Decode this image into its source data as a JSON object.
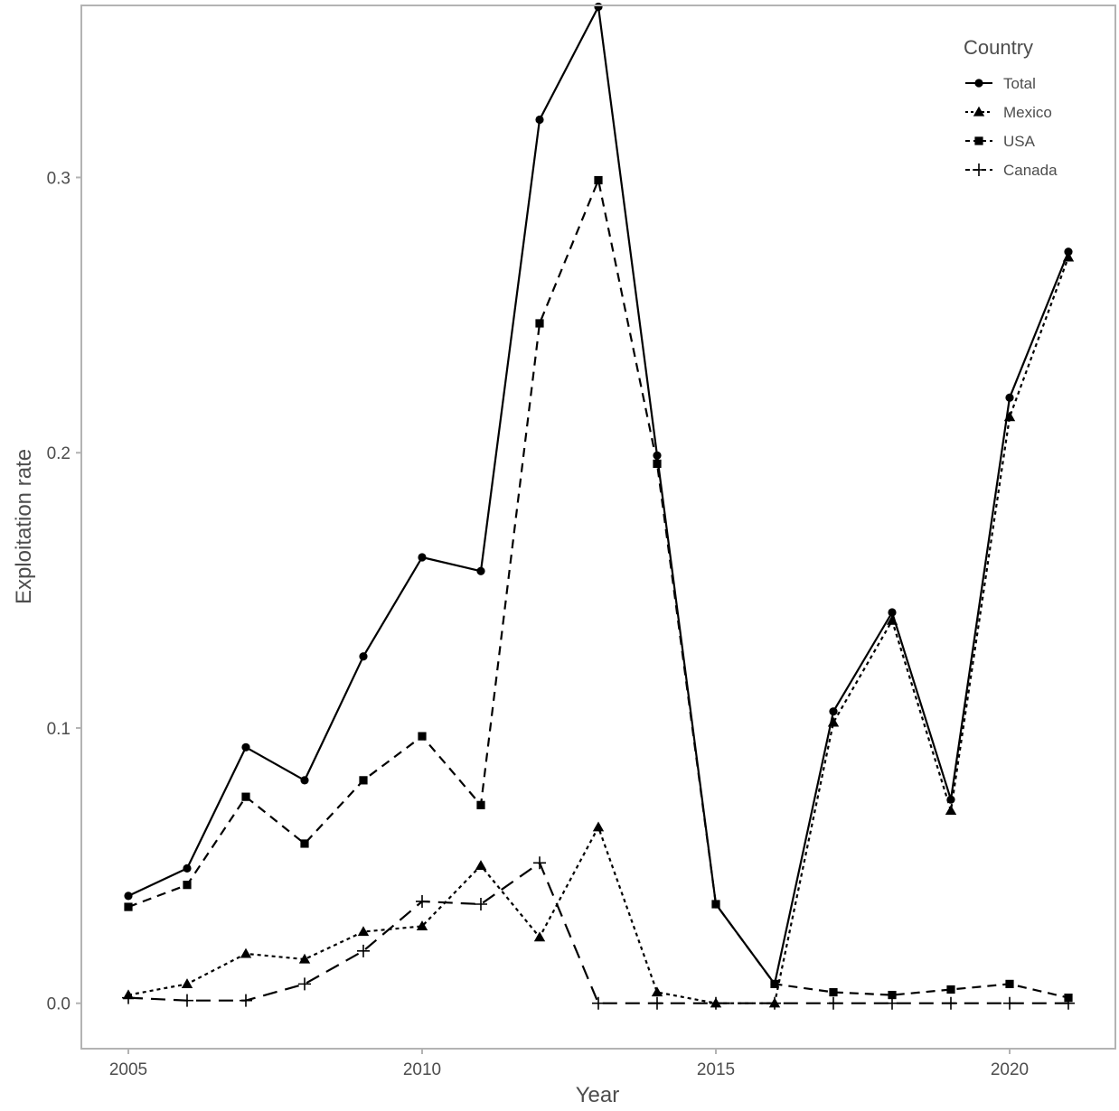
{
  "chart_data": {
    "type": "line",
    "title": "",
    "xlabel": "Year",
    "ylabel": "Exploitation rate",
    "xlim": [
      2004.2,
      2021.8
    ],
    "ylim": [
      -0.0165,
      0.3625
    ],
    "x_ticks": [
      2005,
      2010,
      2015,
      2020
    ],
    "y_ticks": [
      0.0,
      0.1,
      0.2,
      0.3
    ],
    "y_tick_labels": [
      "0.0",
      "0.1",
      "0.2",
      "0.3"
    ],
    "grid": false,
    "legend": {
      "title": "Country",
      "position": "top-right"
    },
    "x": [
      2005,
      2006,
      2007,
      2008,
      2009,
      2010,
      2011,
      2012,
      2013,
      2014,
      2015,
      2016,
      2017,
      2018,
      2019,
      2020,
      2021
    ],
    "series": [
      {
        "name": "Total",
        "line": "solid",
        "marker": "circle",
        "values": [
          0.039,
          0.049,
          0.093,
          0.081,
          0.126,
          0.162,
          0.157,
          0.321,
          0.362,
          0.199,
          0.036,
          0.007,
          0.106,
          0.142,
          0.074,
          0.22,
          0.273
        ]
      },
      {
        "name": "Mexico",
        "line": "dotted",
        "marker": "triangle",
        "values": [
          0.003,
          0.007,
          0.018,
          0.016,
          0.026,
          0.028,
          0.05,
          0.024,
          0.064,
          0.004,
          0.0,
          0.0,
          0.102,
          0.139,
          0.07,
          0.213,
          0.271
        ]
      },
      {
        "name": "USA",
        "line": "dashed",
        "marker": "square",
        "values": [
          0.035,
          0.043,
          0.075,
          0.058,
          0.081,
          0.097,
          0.072,
          0.247,
          0.299,
          0.196,
          0.036,
          0.007,
          0.004,
          0.003,
          0.005,
          0.007,
          0.002
        ]
      },
      {
        "name": "Canada",
        "line": "longdash",
        "marker": "plus",
        "values": [
          0.002,
          0.001,
          0.001,
          0.007,
          0.019,
          0.037,
          0.036,
          0.051,
          0.0,
          0.0,
          0.0,
          0.0,
          0.0,
          0.0,
          0.0,
          0.0,
          0.0
        ]
      }
    ]
  }
}
